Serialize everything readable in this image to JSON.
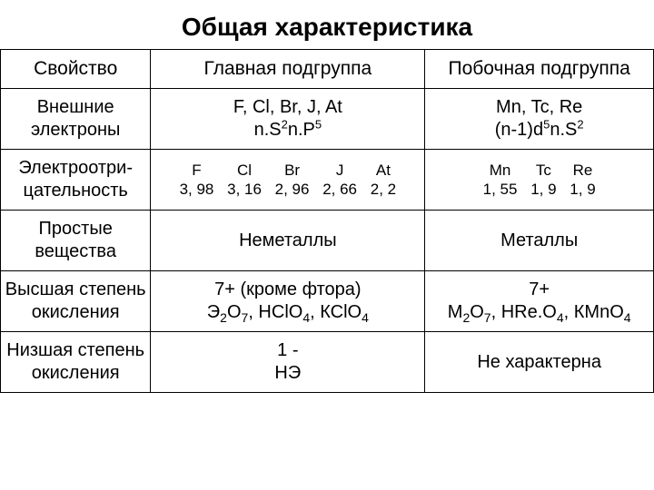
{
  "title": "Общая характеристика",
  "headers": {
    "col1": "Свойство",
    "col2": "Главная подгруппа",
    "col3": "Побочная подгруппа"
  },
  "rows": {
    "outer_electrons": {
      "label": "Внешние электроны",
      "main_elements": "F, Cl, Br, J, At",
      "main_config_plain": "n.S2n.P5",
      "side_elements": "Mn, Tc, Re",
      "side_config_plain": "(n-1)d5n.S2"
    },
    "electronegativity": {
      "label": "Электроотри-цательность",
      "main": [
        {
          "el": "F",
          "val": "3, 98"
        },
        {
          "el": "Cl",
          "val": "3, 16"
        },
        {
          "el": "Br",
          "val": "2, 96"
        },
        {
          "el": "J",
          "val": "2, 66"
        },
        {
          "el": "At",
          "val": "2, 2"
        }
      ],
      "side": [
        {
          "el": "Mn",
          "val": "1, 55"
        },
        {
          "el": "Tc",
          "val": "1, 9"
        },
        {
          "el": "Re",
          "val": "1, 9"
        }
      ]
    },
    "simple_substances": {
      "label": "Простые вещества",
      "main": "Неметаллы",
      "side": "Металлы"
    },
    "highest_oxidation": {
      "label": "Высшая степень окисления",
      "main_line1": "7+ (кроме фтора)",
      "main_line2_plain": "Э2О7, НСlО4, КСlО4",
      "side_line1": "7+",
      "side_line2_plain": "М2О7, НReО4, КМnО4"
    },
    "lowest_oxidation": {
      "label": "Низшая степень окисления",
      "main_line1": "1 -",
      "main_line2": "НЭ",
      "side": "Не характерна"
    }
  }
}
